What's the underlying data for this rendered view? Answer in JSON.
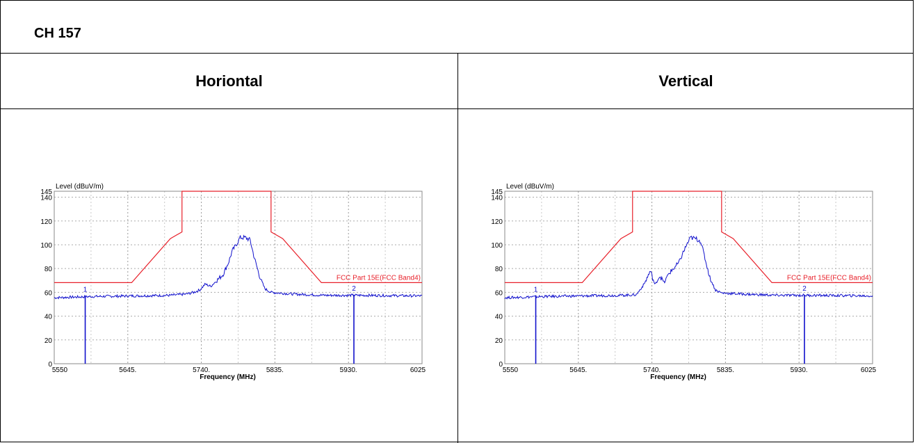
{
  "title": "CH 157",
  "columns": [
    "Horiontal",
    "Vertical"
  ],
  "chart_data": [
    {
      "type": "line",
      "ylabel": "Level (dBuV/m)",
      "xlabel": "Frequency (MHz)",
      "xlim": [
        5550,
        6025
      ],
      "ylim": [
        0,
        145
      ],
      "yticks": [
        0,
        20,
        40,
        60,
        80,
        100,
        120,
        140,
        145
      ],
      "xticks": [
        5550,
        5645,
        5740,
        5835,
        5930,
        6025
      ],
      "xtick_labels": [
        "5550",
        "5645.",
        "5740.",
        "5835.",
        "5930.",
        "6025"
      ],
      "grid": true,
      "limit_label": "FCC Part 15E(FCC Band4)",
      "limit_color": "#e8202a",
      "trace_color": "#1010cc",
      "limit_line": {
        "x": [
          5550,
          5650,
          5700,
          5715,
          5715,
          5830,
          5830,
          5845,
          5895,
          6025
        ],
        "y": [
          68.2,
          68.2,
          105.2,
          110.8,
          145,
          145,
          110.8,
          105.2,
          68.2,
          68.2
        ]
      },
      "trace": {
        "x": [
          5550,
          5600,
          5650,
          5700,
          5720,
          5730,
          5738,
          5745,
          5752,
          5760,
          5768,
          5775,
          5780,
          5785,
          5790,
          5797,
          5803,
          5808,
          5815,
          5822,
          5830,
          5860,
          5900,
          5950,
          6025
        ],
        "y": [
          55.5,
          56.5,
          57.0,
          57.5,
          58.5,
          60.0,
          62.0,
          67.0,
          65.0,
          70.0,
          75.0,
          85.0,
          95.0,
          100.0,
          106.0,
          106.0,
          104.0,
          90.0,
          74.0,
          63.0,
          60.0,
          58.5,
          57.5,
          57.5,
          57.0
        ]
      },
      "markers": [
        {
          "label": "1",
          "x": 5590,
          "y": 57.0
        },
        {
          "label": "2",
          "x": 5937,
          "y": 58.0
        }
      ]
    },
    {
      "type": "line",
      "ylabel": "Level (dBuV/m)",
      "xlabel": "Frequency (MHz)",
      "xlim": [
        5550,
        6025
      ],
      "ylim": [
        0,
        145
      ],
      "yticks": [
        0,
        20,
        40,
        60,
        80,
        100,
        120,
        140,
        145
      ],
      "xticks": [
        5550,
        5645,
        5740,
        5835,
        5930,
        6025
      ],
      "xtick_labels": [
        "5550",
        "5645.",
        "5740.",
        "5835.",
        "5930.",
        "6025"
      ],
      "grid": true,
      "limit_label": "FCC Part 15E(FCC Band4)",
      "limit_color": "#e8202a",
      "trace_color": "#1010cc",
      "limit_line": {
        "x": [
          5550,
          5650,
          5700,
          5715,
          5715,
          5830,
          5830,
          5845,
          5895,
          6025
        ],
        "y": [
          68.2,
          68.2,
          105.2,
          110.8,
          145,
          145,
          110.8,
          105.2,
          68.2,
          68.2
        ]
      },
      "trace": {
        "x": [
          5550,
          5600,
          5650,
          5700,
          5720,
          5730,
          5738,
          5744,
          5750,
          5756,
          5762,
          5768,
          5775,
          5780,
          5785,
          5790,
          5797,
          5803,
          5808,
          5815,
          5822,
          5830,
          5860,
          5900,
          5950,
          6025
        ],
        "y": [
          55.5,
          56.5,
          57.0,
          57.5,
          58.0,
          67.0,
          78.0,
          66.0,
          74.0,
          68.0,
          76.0,
          80.0,
          85.0,
          93.0,
          100.0,
          106.0,
          105.0,
          103.0,
          90.0,
          72.0,
          62.0,
          59.5,
          58.5,
          57.5,
          57.5,
          57.0
        ]
      },
      "markers": [
        {
          "label": "1",
          "x": 5590,
          "y": 57.0
        },
        {
          "label": "2",
          "x": 5937,
          "y": 58.0
        }
      ]
    }
  ]
}
